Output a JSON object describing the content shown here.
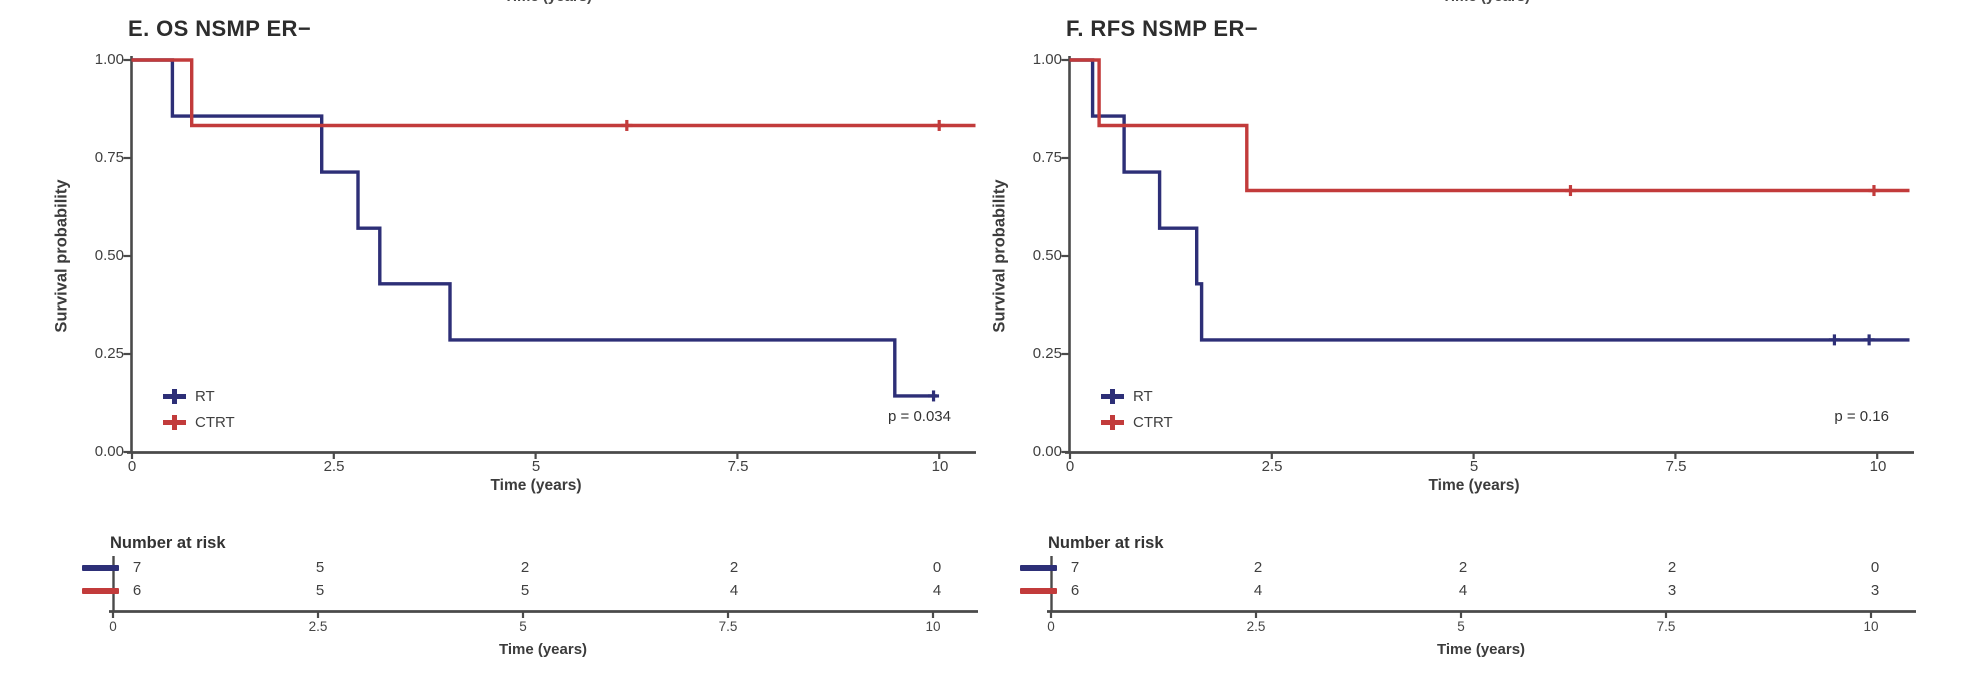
{
  "chart_data": [
    {
      "type": "line",
      "subtype": "kaplan-meier-step",
      "title": "E. OS NSMP ER−",
      "top_clipped_text": "Time (years)",
      "xlabel": "Time (years)",
      "ylabel": "Survival probability",
      "p_value": "p = 0.034",
      "xlim": [
        0,
        10.5
      ],
      "ylim": [
        0,
        1
      ],
      "x_ticks": [
        0,
        2.5,
        5,
        7.5,
        10
      ],
      "x_tick_labels": [
        "0",
        "2.5",
        "5",
        "7.5",
        "10"
      ],
      "y_ticks": [
        1,
        0.75,
        0.5,
        0.25,
        0
      ],
      "y_tick_labels": [
        "1.00",
        "0.75",
        "0.50",
        "0.25",
        "0.00"
      ],
      "grid": false,
      "legend_position": "inside-bottom-left",
      "series": [
        {
          "name": "RT",
          "color": "#2d2f77",
          "steps": [
            [
              0,
              1
            ],
            [
              0.5,
              0.857
            ],
            [
              2.35,
              0.714
            ],
            [
              2.8,
              0.571
            ],
            [
              3.07,
              0.429
            ],
            [
              3.94,
              0.286
            ],
            [
              9.45,
              0.143
            ]
          ],
          "end_time": 9.97,
          "censors": [
            [
              9.93,
              0.143
            ]
          ]
        },
        {
          "name": "CTRT",
          "color": "#c23b3b",
          "steps": [
            [
              0,
              1
            ],
            [
              0.74,
              0.833
            ]
          ],
          "end_time": 10.45,
          "censors": [
            [
              6.13,
              0.833
            ],
            [
              10.0,
              0.833
            ]
          ]
        }
      ],
      "risk_table": {
        "title": "Number at risk",
        "xlabel": "Time (years)",
        "rows": [
          {
            "name": "RT",
            "values": [
              7,
              5,
              2,
              2,
              0
            ]
          },
          {
            "name": "CTRT",
            "values": [
              6,
              5,
              5,
              4,
              4
            ]
          }
        ]
      }
    },
    {
      "type": "line",
      "subtype": "kaplan-meier-step",
      "title": "F. RFS NSMP ER−",
      "top_clipped_text": "Time (years)",
      "xlabel": "Time (years)",
      "ylabel": "Survival probability",
      "p_value": "p = 0.16",
      "xlim": [
        0,
        10.5
      ],
      "ylim": [
        0,
        1
      ],
      "x_ticks": [
        0,
        2.5,
        5,
        7.5,
        10
      ],
      "x_tick_labels": [
        "0",
        "2.5",
        "5",
        "7.5",
        "10"
      ],
      "y_ticks": [
        1,
        0.75,
        0.5,
        0.25,
        0
      ],
      "y_tick_labels": [
        "1.00",
        "0.75",
        "0.50",
        "0.25",
        "0.00"
      ],
      "grid": false,
      "legend_position": "inside-bottom-left",
      "series": [
        {
          "name": "RT",
          "color": "#2d2f77",
          "steps": [
            [
              0,
              1
            ],
            [
              0.28,
              0.857
            ],
            [
              0.67,
              0.714
            ],
            [
              1.11,
              0.571
            ],
            [
              1.57,
              0.429
            ],
            [
              1.63,
              0.286
            ]
          ],
          "end_time": 10.4,
          "censors": [
            [
              9.47,
              0.286
            ],
            [
              9.9,
              0.286
            ]
          ]
        },
        {
          "name": "CTRT",
          "color": "#c23b3b",
          "steps": [
            [
              0,
              1
            ],
            [
              0.36,
              0.833
            ],
            [
              2.19,
              0.667
            ]
          ],
          "end_time": 10.4,
          "censors": [
            [
              6.2,
              0.667
            ],
            [
              9.96,
              0.667
            ]
          ]
        }
      ],
      "risk_table": {
        "title": "Number at risk",
        "xlabel": "Time (years)",
        "rows": [
          {
            "name": "RT",
            "values": [
              7,
              2,
              2,
              2,
              0
            ]
          },
          {
            "name": "CTRT",
            "values": [
              6,
              4,
              4,
              3,
              3
            ]
          }
        ]
      }
    }
  ],
  "axis_color": "#4a4a4a"
}
